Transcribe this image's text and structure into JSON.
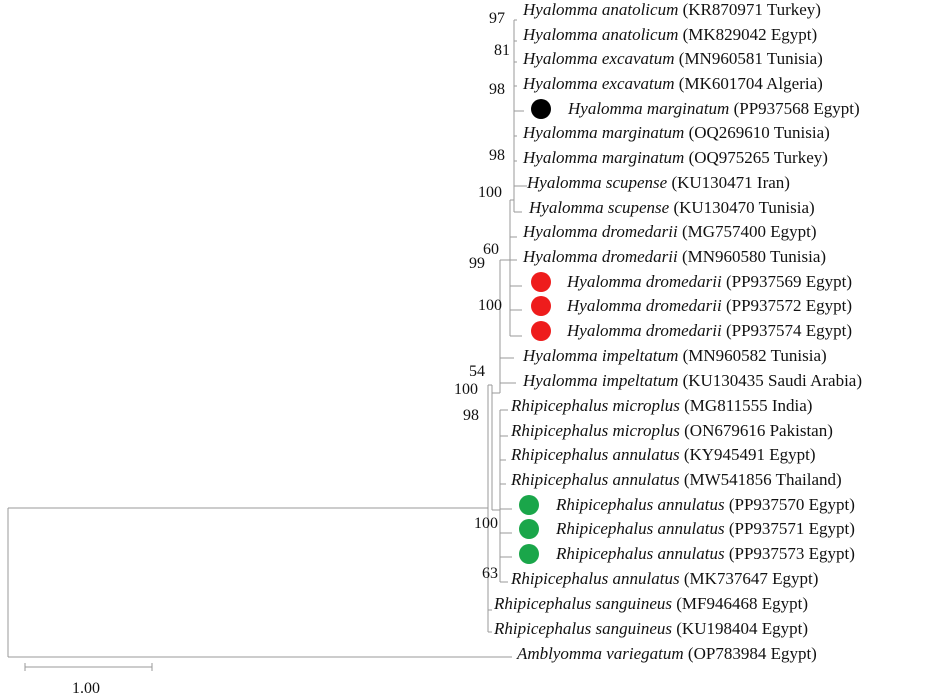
{
  "tree": {
    "taxa": [
      {
        "species": "Hyalomma anatolicum",
        "accession": "(KR870971 Turkey)",
        "marker": ""
      },
      {
        "species": "Hyalomma anatolicum",
        "accession": "(MK829042 Egypt)",
        "marker": ""
      },
      {
        "species": "Hyalomma excavatum",
        "accession": "(MN960581 Tunisia)",
        "marker": ""
      },
      {
        "species": "Hyalomma excavatum",
        "accession": "(MK601704 Algeria)",
        "marker": ""
      },
      {
        "species": "Hyalomma marginatum",
        "accession": "(PP937568 Egypt)",
        "marker": "black"
      },
      {
        "species": "Hyalomma marginatum",
        "accession": "(OQ269610 Tunisia)",
        "marker": ""
      },
      {
        "species": "Hyalomma marginatum",
        "accession": "(OQ975265 Turkey)",
        "marker": ""
      },
      {
        "species": "Hyalomma scupense",
        "accession": "(KU130471 Iran)",
        "marker": ""
      },
      {
        "species": "Hyalomma scupense",
        "accession": "(KU130470 Tunisia)",
        "marker": ""
      },
      {
        "species": "Hyalomma dromedarii",
        "accession": "(MG757400 Egypt)",
        "marker": ""
      },
      {
        "species": "Hyalomma dromedarii",
        "accession": "(MN960580 Tunisia)",
        "marker": ""
      },
      {
        "species": "Hyalomma dromedarii",
        "accession": "(PP937569 Egypt)",
        "marker": "red"
      },
      {
        "species": "Hyalomma dromedarii",
        "accession": "(PP937572 Egypt)",
        "marker": "red"
      },
      {
        "species": "Hyalomma dromedarii",
        "accession": "(PP937574 Egypt)",
        "marker": "red"
      },
      {
        "species": "Hyalomma impeltatum",
        "accession": "(MN960582 Tunisia)",
        "marker": ""
      },
      {
        "species": "Hyalomma impeltatum",
        "accession": "(KU130435 Saudi Arabia)",
        "marker": ""
      },
      {
        "species": "Rhipicephalus microplus",
        "accession": "(MG811555 India)",
        "marker": ""
      },
      {
        "species": "Rhipicephalus microplus",
        "accession": "(ON679616 Pakistan)",
        "marker": ""
      },
      {
        "species": "Rhipicephalus annulatus",
        "accession": "(KY945491 Egypt)",
        "marker": ""
      },
      {
        "species": "Rhipicephalus annulatus",
        "accession": "(MW541856 Thailand)",
        "marker": ""
      },
      {
        "species": "Rhipicephalus annulatus",
        "accession": "(PP937570 Egypt)",
        "marker": "green"
      },
      {
        "species": "Rhipicephalus annulatus",
        "accession": "(PP937571 Egypt)",
        "marker": "green"
      },
      {
        "species": "Rhipicephalus annulatus",
        "accession": "(PP937573 Egypt)",
        "marker": "green"
      },
      {
        "species": "Rhipicephalus annulatus",
        "accession": "(MK737647 Egypt)",
        "marker": ""
      },
      {
        "species": "Rhipicephalus sanguineus",
        "accession": "(MF946468 Egypt)",
        "marker": ""
      },
      {
        "species": "Rhipicephalus sanguineus",
        "accession": "(KU198404 Egypt)",
        "marker": ""
      },
      {
        "species": "Amblyomma variegatum",
        "accession": "(OP783984 Egypt)",
        "marker": ""
      }
    ],
    "support_values": [
      "97",
      "81",
      "98",
      "98",
      "100",
      "60",
      "99",
      "100",
      "54",
      "100",
      "98",
      "100",
      "63"
    ],
    "scale_bar_label": "1.00"
  },
  "colors": {
    "black": "#000000",
    "red": "#ee1c1c",
    "green": "#1aa64a",
    "branch": "#9a9a9a"
  }
}
